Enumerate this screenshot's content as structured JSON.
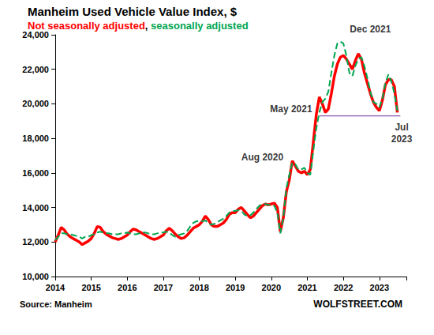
{
  "chart_data": {
    "type": "line",
    "title": "Manheim Used Vehicle Value Index, $",
    "subtitle": "Not seasonally adjusted, seasonally adjusted",
    "source": "Source: Manheim",
    "credit": "WOLFSTREET.COM",
    "x": [
      2014,
      2014.083,
      2014.167,
      2014.25,
      2014.333,
      2014.417,
      2014.5,
      2014.583,
      2014.667,
      2014.75,
      2014.833,
      2014.917,
      2015,
      2015.083,
      2015.167,
      2015.25,
      2015.333,
      2015.417,
      2015.5,
      2015.583,
      2015.667,
      2015.75,
      2015.833,
      2015.917,
      2016,
      2016.083,
      2016.167,
      2016.25,
      2016.333,
      2016.417,
      2016.5,
      2016.583,
      2016.667,
      2016.75,
      2016.833,
      2016.917,
      2017,
      2017.083,
      2017.167,
      2017.25,
      2017.333,
      2017.417,
      2017.5,
      2017.583,
      2017.667,
      2017.75,
      2017.833,
      2017.917,
      2018,
      2018.083,
      2018.167,
      2018.25,
      2018.333,
      2018.417,
      2018.5,
      2018.583,
      2018.667,
      2018.75,
      2018.833,
      2018.917,
      2019,
      2019.083,
      2019.167,
      2019.25,
      2019.333,
      2019.417,
      2019.5,
      2019.583,
      2019.667,
      2019.75,
      2019.833,
      2019.917,
      2020,
      2020.083,
      2020.167,
      2020.25,
      2020.333,
      2020.417,
      2020.5,
      2020.583,
      2020.667,
      2020.75,
      2020.833,
      2020.917,
      2021,
      2021.083,
      2021.167,
      2021.25,
      2021.333,
      2021.417,
      2021.5,
      2021.583,
      2021.667,
      2021.75,
      2021.833,
      2021.917,
      2022,
      2022.083,
      2022.167,
      2022.25,
      2022.333,
      2022.417,
      2022.5,
      2022.583,
      2022.667,
      2022.75,
      2022.833,
      2022.917,
      2023,
      2023.083,
      2023.167,
      2023.25,
      2023.333,
      2023.417,
      2023.5
    ],
    "series": [
      {
        "name": "Not seasonally adjusted",
        "color": "#ff0000",
        "line_style": "solid",
        "values": [
          12000,
          12400,
          12850,
          12700,
          12450,
          12300,
          12200,
          12100,
          12000,
          11850,
          11950,
          12050,
          12200,
          12500,
          12900,
          12850,
          12600,
          12450,
          12350,
          12250,
          12200,
          12150,
          12200,
          12300,
          12400,
          12600,
          12750,
          12700,
          12600,
          12500,
          12400,
          12300,
          12200,
          12150,
          12200,
          12300,
          12400,
          12650,
          12800,
          12650,
          12450,
          12300,
          12200,
          12250,
          12400,
          12600,
          12800,
          12900,
          13000,
          13200,
          13500,
          13300,
          13000,
          12900,
          12900,
          13000,
          13100,
          13300,
          13600,
          13700,
          13700,
          13900,
          14000,
          13800,
          13600,
          13400,
          13500,
          13700,
          13900,
          14100,
          14200,
          14150,
          14200,
          14250,
          14000,
          12600,
          13400,
          14900,
          15600,
          16700,
          16400,
          16100,
          16000,
          16100,
          15900,
          16200,
          17800,
          19400,
          20400,
          20000,
          19500,
          19700,
          20600,
          21600,
          22300,
          22700,
          22800,
          22600,
          22300,
          22000,
          22500,
          22900,
          22600,
          21800,
          21200,
          20600,
          20100,
          19800,
          19600,
          20200,
          21100,
          21400,
          21400,
          21000,
          19500
        ]
      },
      {
        "name": "seasonally adjusted",
        "color": "#00a651",
        "line_style": "dashed",
        "values": [
          12100,
          12300,
          12500,
          12500,
          12450,
          12450,
          12400,
          12350,
          12300,
          12200,
          12300,
          12300,
          12400,
          12450,
          12550,
          12600,
          12550,
          12500,
          12500,
          12450,
          12450,
          12450,
          12500,
          12500,
          12550,
          12500,
          12450,
          12450,
          12500,
          12550,
          12550,
          12500,
          12450,
          12450,
          12500,
          12550,
          12550,
          12600,
          12550,
          12400,
          12300,
          12400,
          12450,
          12500,
          12650,
          12900,
          13100,
          13200,
          13200,
          13200,
          13250,
          13100,
          13000,
          13050,
          13150,
          13250,
          13350,
          13500,
          13700,
          13800,
          13800,
          13850,
          13800,
          13600,
          13500,
          13550,
          13700,
          13900,
          14100,
          14200,
          14200,
          14150,
          14150,
          14100,
          13700,
          12500,
          13400,
          15100,
          15900,
          16600,
          16500,
          16200,
          16200,
          16300,
          16000,
          15900,
          17300,
          18600,
          19500,
          20100,
          20300,
          20700,
          21800,
          22800,
          23500,
          23600,
          23500,
          22800,
          21800,
          21600,
          22200,
          22600,
          22700,
          22200,
          21500,
          20700,
          20100,
          20000,
          19800,
          20300,
          21200,
          21700,
          21300,
          20600,
          19600
        ]
      }
    ],
    "xlim": [
      2014,
      2023.75
    ],
    "xticks": [
      2014,
      2015,
      2016,
      2017,
      2018,
      2019,
      2020,
      2021,
      2022,
      2023
    ],
    "ylim": [
      10000,
      24000
    ],
    "yticks": [
      {
        "value": 10000,
        "label": "10,000"
      },
      {
        "value": 12000,
        "label": "12,000"
      },
      {
        "value": 14000,
        "label": "14,000"
      },
      {
        "value": 16000,
        "label": "16,000"
      },
      {
        "value": 18000,
        "label": "18,000"
      },
      {
        "value": 20000,
        "label": "20,000"
      },
      {
        "value": 22000,
        "label": "22,000"
      },
      {
        "value": 24000,
        "label": "24,000"
      }
    ],
    "grid": false,
    "reference_line": {
      "value": 19300,
      "x": [
        2021.333,
        2023.583
      ],
      "color": "#7030a0"
    },
    "annotations": [
      {
        "text": "Dec 2021",
        "x": 2022.75,
        "y": 24300
      },
      {
        "text": "May 2021",
        "x": 2020.55,
        "y": 19700
      },
      {
        "text": "Aug 2020",
        "x": 2019.75,
        "y": 16900
      },
      {
        "text": "Jul\n2023",
        "x": 2023.62,
        "y": 18300
      }
    ]
  }
}
